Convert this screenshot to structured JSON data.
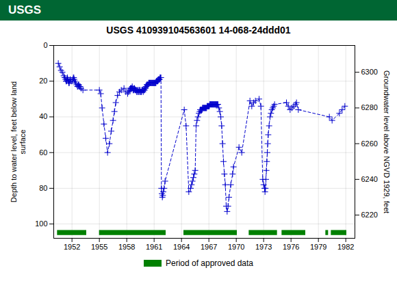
{
  "chart_data": {
    "type": "line",
    "title": "USGS 410939104563601 14-068-24ddd01",
    "annotations": [
      "USGS"
    ],
    "y_label": "Depth to water level, feet below land\nsurface",
    "y2_label": "Groundwater level above NGVD 1929, feet",
    "x": [
      1950.5,
      1950.65,
      1950.8,
      1950.95,
      1951.1,
      1951.2,
      1951.3,
      1951.35,
      1951.4,
      1951.45,
      1951.5,
      1951.55,
      1951.6,
      1951.65,
      1951.7,
      1951.75,
      1951.8,
      1951.9,
      1952.0,
      1952.1,
      1952.15,
      1952.2,
      1952.25,
      1952.3,
      1952.4,
      1952.5,
      1952.6,
      1952.65,
      1952.7,
      1952.75,
      1952.8,
      1952.85,
      1952.9,
      1953.0,
      1953.2,
      1955.0,
      1955.15,
      1955.3,
      1955.5,
      1955.7,
      1955.9,
      1956.1,
      1956.3,
      1956.5,
      1956.65,
      1956.8,
      1957.0,
      1957.2,
      1957.4,
      1957.7,
      1957.9,
      1958.1,
      1958.2,
      1958.3,
      1958.35,
      1958.4,
      1958.45,
      1958.5,
      1958.55,
      1958.6,
      1958.65,
      1958.7,
      1958.75,
      1958.8,
      1958.85,
      1958.9,
      1958.95,
      1959.0,
      1959.05,
      1959.1,
      1959.15,
      1959.2,
      1959.25,
      1959.3,
      1959.35,
      1959.4,
      1959.45,
      1959.5,
      1959.55,
      1959.6,
      1959.65,
      1959.7,
      1959.75,
      1959.8,
      1959.85,
      1959.9,
      1959.95,
      1960.0,
      1960.05,
      1960.1,
      1960.15,
      1960.2,
      1960.25,
      1960.3,
      1960.35,
      1960.4,
      1960.45,
      1960.5,
      1960.55,
      1960.6,
      1960.65,
      1960.7,
      1960.75,
      1960.8,
      1960.85,
      1960.9,
      1960.95,
      1961.0,
      1961.05,
      1961.1,
      1961.15,
      1961.2,
      1961.25,
      1961.3,
      1961.35,
      1961.4,
      1961.45,
      1961.5,
      1961.55,
      1961.6,
      1961.65,
      1961.7,
      1961.75,
      1961.8,
      1961.85,
      1961.9,
      1961.95,
      1962.0,
      1962.1,
      1962.2,
      1964.3,
      1964.5,
      1964.8,
      1965.0,
      1965.1,
      1965.2,
      1965.3,
      1965.4,
      1965.5,
      1965.6,
      1965.7,
      1965.8,
      1965.9,
      1966.0,
      1966.05,
      1966.1,
      1966.15,
      1966.2,
      1966.25,
      1966.3,
      1966.35,
      1966.4,
      1966.45,
      1966.5,
      1966.55,
      1966.6,
      1966.65,
      1966.7,
      1966.75,
      1966.8,
      1966.85,
      1966.9,
      1966.95,
      1967.0,
      1967.05,
      1967.1,
      1967.15,
      1967.2,
      1967.25,
      1967.3,
      1967.35,
      1967.4,
      1967.45,
      1967.5,
      1967.55,
      1967.6,
      1967.65,
      1967.7,
      1967.75,
      1967.8,
      1967.85,
      1967.9,
      1967.95,
      1968.0,
      1968.1,
      1968.2,
      1968.3,
      1968.4,
      1968.5,
      1968.6,
      1968.7,
      1968.8,
      1968.9,
      1969.0,
      1969.1,
      1969.2,
      1969.4,
      1969.6,
      1969.7,
      1970.3,
      1970.6,
      1971.5,
      1971.7,
      1971.9,
      1972.1,
      1972.5,
      1972.7,
      1972.9,
      1973.0,
      1973.1,
      1973.15,
      1973.2,
      1973.25,
      1973.3,
      1973.35,
      1973.4,
      1973.45,
      1973.5,
      1973.6,
      1973.7,
      1973.8,
      1973.9,
      1974.0,
      1974.1,
      1974.2,
      1975.5,
      1975.7,
      1975.9,
      1976.1,
      1976.3,
      1976.5,
      1976.6,
      1976.8,
      1980.2,
      1980.5,
      1981.3,
      1981.6,
      1981.9
    ],
    "series": [
      {
        "color": "#0000CC",
        "line_style": "dashed",
        "marker": "+",
        "values": [
          10,
          12,
          14,
          15,
          17,
          18,
          19,
          20,
          20,
          19,
          18,
          19,
          20,
          21,
          21,
          20,
          19,
          20,
          20,
          19,
          18,
          18,
          19,
          20,
          21,
          22,
          23,
          23,
          22,
          22,
          23,
          23,
          23,
          24,
          25,
          25,
          27,
          35,
          44,
          52,
          60,
          55,
          48,
          42,
          37,
          32,
          28,
          26,
          25,
          24,
          26,
          27,
          26,
          25,
          25,
          24,
          24,
          24,
          24,
          23,
          24,
          25,
          25,
          24,
          24,
          25,
          25,
          25,
          25,
          26,
          26,
          25,
          25,
          26,
          26,
          25,
          25,
          26,
          26,
          26,
          25,
          25,
          25,
          26,
          25,
          25,
          25,
          24,
          24,
          23,
          23,
          22,
          22,
          22,
          22,
          21,
          21,
          21,
          21,
          21,
          21,
          21,
          21,
          21,
          21,
          21,
          21,
          21,
          21,
          21,
          21,
          21,
          20,
          20,
          20,
          20,
          19,
          19,
          19,
          19,
          18,
          18,
          18,
          80,
          83,
          85,
          84,
          82,
          80,
          76,
          36,
          45,
          82,
          80,
          78,
          76,
          74,
          72,
          70,
          45,
          42,
          40,
          38,
          37,
          36,
          36,
          36,
          36,
          36,
          35,
          35,
          35,
          35,
          35,
          35,
          35,
          35,
          35,
          35,
          34,
          34,
          34,
          34,
          34,
          34,
          33,
          33,
          33,
          33,
          33,
          33,
          33,
          33,
          33,
          33,
          33,
          33,
          33,
          33,
          33,
          33,
          33,
          33,
          33,
          35,
          37,
          40,
          45,
          55,
          65,
          72,
          78,
          90,
          93,
          90,
          85,
          78,
          72,
          68,
          57,
          60,
          31,
          34,
          32,
          31,
          30,
          34,
          75,
          78,
          80,
          82,
          80,
          75,
          70,
          65,
          60,
          55,
          50,
          45,
          40,
          38,
          36,
          35,
          34,
          33,
          32,
          34,
          36,
          35,
          34,
          33,
          32,
          36,
          40,
          42,
          38,
          36,
          34
        ]
      },
      {
        "name": "Period of approved data",
        "type": "span",
        "color": "#008000",
        "periods": [
          [
            1950.4,
            1953.6
          ],
          [
            1955.0,
            1962.3
          ],
          [
            1964.25,
            1970.1
          ],
          [
            1971.4,
            1974.5
          ],
          [
            1975.0,
            1977.6
          ],
          [
            1979.8,
            1980.1
          ],
          [
            1980.4,
            1982.1
          ]
        ]
      }
    ],
    "xlim": [
      1950.0,
      1983.0
    ],
    "xticks": [
      1952,
      1955,
      1958,
      1961,
      1964,
      1967,
      1970,
      1973,
      1976,
      1979,
      1982
    ],
    "ylim": [
      108,
      0
    ],
    "yticks": [
      0,
      20,
      40,
      60,
      80,
      100
    ],
    "y2lim": [
      6207,
      6315
    ],
    "y2ticks": [
      6220,
      6240,
      6260,
      6280,
      6300
    ],
    "grid": true,
    "legend": "bottom"
  }
}
